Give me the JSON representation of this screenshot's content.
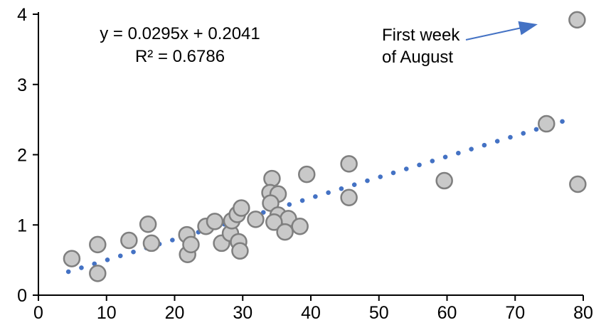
{
  "chart_data": {
    "type": "scatter",
    "title": "",
    "xlabel": "",
    "ylabel": "",
    "x_axis": {
      "min": 0,
      "max": 80,
      "ticks": [
        0,
        10,
        20,
        30,
        40,
        50,
        60,
        70,
        80
      ]
    },
    "y_axis": {
      "min": 0,
      "max": 4,
      "ticks": [
        0,
        1,
        2,
        3,
        4
      ]
    },
    "grid": "off",
    "legend": "none",
    "points": [
      [
        4.9,
        0.52
      ],
      [
        8.7,
        0.72
      ],
      [
        8.7,
        0.31
      ],
      [
        13.3,
        0.78
      ],
      [
        16.1,
        1.01
      ],
      [
        16.6,
        0.74
      ],
      [
        21.8,
        0.86
      ],
      [
        21.9,
        0.58
      ],
      [
        22.4,
        0.72
      ],
      [
        24.6,
        0.98
      ],
      [
        25.9,
        1.05
      ],
      [
        26.9,
        0.74
      ],
      [
        28.2,
        0.88
      ],
      [
        28.4,
        1.06
      ],
      [
        29.2,
        1.15
      ],
      [
        29.8,
        1.24
      ],
      [
        29.4,
        0.76
      ],
      [
        29.6,
        0.63
      ],
      [
        31.9,
        1.08
      ],
      [
        34.3,
        1.66
      ],
      [
        34.0,
        1.46
      ],
      [
        35.2,
        1.44
      ],
      [
        34.1,
        1.31
      ],
      [
        35.2,
        1.14
      ],
      [
        36.7,
        1.09
      ],
      [
        34.6,
        1.04
      ],
      [
        36.2,
        0.9
      ],
      [
        38.4,
        0.98
      ],
      [
        39.4,
        1.72
      ],
      [
        45.6,
        1.87
      ],
      [
        45.6,
        1.39
      ],
      [
        59.6,
        1.63
      ],
      [
        74.6,
        2.44
      ],
      [
        79.2,
        1.58
      ],
      [
        79.1,
        3.92
      ]
    ],
    "trendline": {
      "slope": 0.0295,
      "intercept": 0.2041,
      "x_start": 4.4,
      "x_end": 78.5,
      "equation_label": "y = 0.0295x + 0.2041",
      "r2_label": "R² = 0.6786"
    },
    "annotation": {
      "line1": "First week",
      "line2": "of August",
      "target_point": [
        79.1,
        3.92
      ]
    },
    "colors": {
      "marker_fill": "#c9c9c9",
      "marker_stroke": "#7f7f7f",
      "trendline": "#4472c4",
      "arrow": "#4472c4",
      "axis": "#000000",
      "text": "#000000"
    }
  }
}
